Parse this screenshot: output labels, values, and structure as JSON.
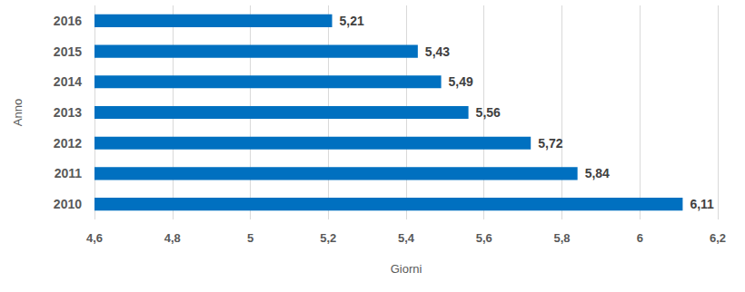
{
  "chart_data": {
    "type": "bar",
    "orientation": "horizontal",
    "x_label": "Giorni",
    "y_label": "Anno",
    "categories": [
      "2010",
      "2011",
      "2012",
      "2013",
      "2014",
      "2015",
      "2016"
    ],
    "values": [
      6.11,
      5.84,
      5.72,
      5.56,
      5.49,
      5.43,
      5.21
    ],
    "value_labels": [
      "6,11",
      "5,84",
      "5,72",
      "5,56",
      "5,49",
      "5,43",
      "5,21"
    ],
    "color": "#0070c0",
    "xlim": [
      4.6,
      6.2
    ],
    "xticks": [
      {
        "value": 4.6,
        "label": "4,6"
      },
      {
        "value": 4.8,
        "label": "4,8"
      },
      5,
      {
        "value": 5.2,
        "label": "5,2"
      },
      {
        "value": 5.4,
        "label": "5,4"
      },
      {
        "value": 5.6,
        "label": "5,6"
      },
      {
        "value": 5.8,
        "label": "5,8"
      },
      6,
      {
        "value": 6.2,
        "label": "6,2"
      }
    ],
    "grid": true,
    "data_labels": true
  }
}
